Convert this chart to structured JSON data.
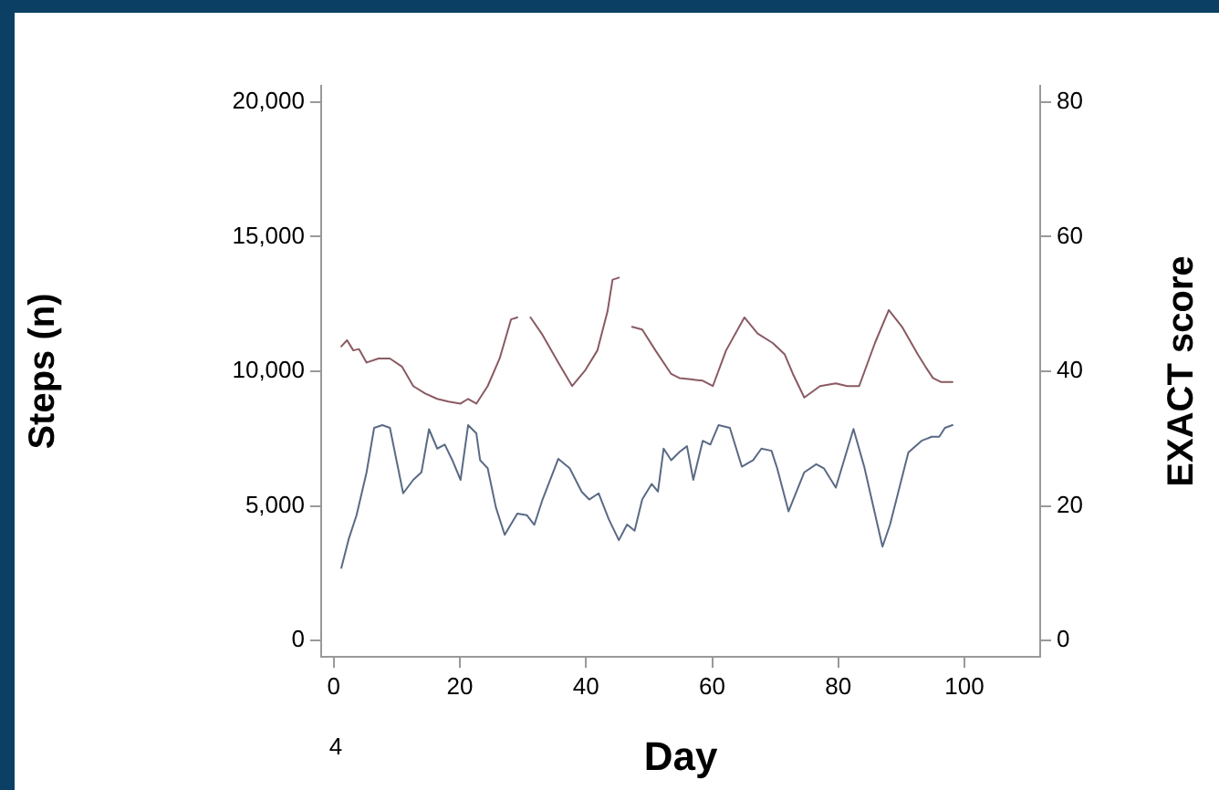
{
  "chart_data": {
    "type": "line",
    "xlabel": "Day",
    "ylabel": "Steps (n)",
    "y2label": "EXACT score",
    "xlim": [
      -2,
      112
    ],
    "xticks": [
      0,
      20,
      40,
      60,
      80,
      100
    ],
    "ylim": [
      -600,
      20600
    ],
    "yticks": [
      {
        "value": 0,
        "label": "0"
      },
      {
        "value": 5000,
        "label": "5,000"
      },
      {
        "value": 10000,
        "label": "10,000"
      },
      {
        "value": 15000,
        "label": "15,000"
      },
      {
        "value": 20000,
        "label": "20,000"
      }
    ],
    "y2lim": [
      -2.4,
      82.4
    ],
    "y2ticks": [
      0,
      20,
      40,
      60,
      80
    ],
    "grid": false,
    "legend": false,
    "marker": "none",
    "line_style": "solid",
    "annotations": [
      "4"
    ],
    "series": [
      {
        "color": "#5a6a85",
        "x": [
          1.2,
          2.4,
          3.6,
          5.2,
          6.4,
          7.7,
          8.9,
          11,
          12.6,
          13.9,
          15.1,
          16.4,
          17.6,
          18.8,
          20.1,
          21.3,
          22.6,
          23.2,
          24.4,
          25.7,
          27.1,
          29.1,
          30.6,
          31.8,
          33.1,
          35.6,
          37.4,
          39.3,
          40.5,
          42,
          43.6,
          45.2,
          46.5,
          47.7,
          48.9,
          50.4,
          51.4,
          52.3,
          53.5,
          54.8,
          56,
          57,
          58.5,
          59.7,
          61,
          62.8,
          64.7,
          66.5,
          67.8,
          69.4,
          70.3,
          72.1,
          74.6,
          76.5,
          77.7,
          79.6,
          82.4,
          84.1,
          87,
          88.2,
          91.1,
          93.2,
          94.8,
          96,
          96.9,
          98.1
        ],
        "values": [
          2700,
          3800,
          4650,
          6250,
          7900,
          8000,
          7900,
          5470,
          5970,
          6250,
          7850,
          7130,
          7280,
          6700,
          5970,
          8000,
          7700,
          6700,
          6400,
          4950,
          3930,
          4720,
          4660,
          4300,
          5240,
          6750,
          6400,
          5530,
          5240,
          5470,
          4510,
          3730,
          4310,
          4080,
          5240,
          5820,
          5530,
          7130,
          6700,
          7000,
          7220,
          5970,
          7420,
          7280,
          8000,
          7900,
          6460,
          6700,
          7130,
          7050,
          6400,
          4800,
          6250,
          6550,
          6400,
          5680,
          7860,
          6460,
          3490,
          4310,
          6990,
          7420,
          7570,
          7570,
          7900,
          8000
        ]
      },
      {
        "color": "#8a5a62",
        "axis": "y2",
        "x": [
          1.2,
          2.1,
          3.1,
          4,
          5.2,
          7.1,
          8.9,
          10.8,
          12.6,
          14.5,
          16.4,
          18.2,
          20.1,
          21.3,
          22.6,
          24.4,
          26.3,
          28.1,
          29.1,
          30.2,
          31.2,
          33.1,
          35.6,
          37.8,
          39.9,
          41.8,
          43.4,
          44.2,
          45.2,
          46.3,
          47.3,
          48.9,
          51,
          53.5,
          54.8,
          56.6,
          58.5,
          60.1,
          62.2,
          65.1,
          67.2,
          69.6,
          71.5,
          72.8,
          74.6,
          77.1,
          79.6,
          81.4,
          83.3,
          85.8,
          88,
          90.1,
          92.6,
          93.8,
          95,
          96.3,
          98.1
        ],
        "values": [
          43.7,
          44.6,
          43.1,
          43.3,
          41.3,
          41.9,
          41.9,
          40.7,
          37.8,
          36.7,
          35.9,
          35.5,
          35.2,
          35.9,
          35.2,
          37.8,
          41.9,
          47.7,
          48,
          null,
          48,
          45.4,
          41.3,
          37.8,
          40.2,
          43.1,
          48.9,
          53.6,
          53.9,
          null,
          46.6,
          46.2,
          43.1,
          39.6,
          39,
          38.8,
          38.6,
          37.8,
          43.1,
          48,
          45.6,
          44.2,
          42.5,
          39.6,
          36.1,
          37.8,
          38.2,
          37.8,
          37.8,
          44.2,
          49.1,
          46.6,
          42.5,
          40.7,
          39,
          38.4,
          38.4
        ]
      }
    ]
  }
}
